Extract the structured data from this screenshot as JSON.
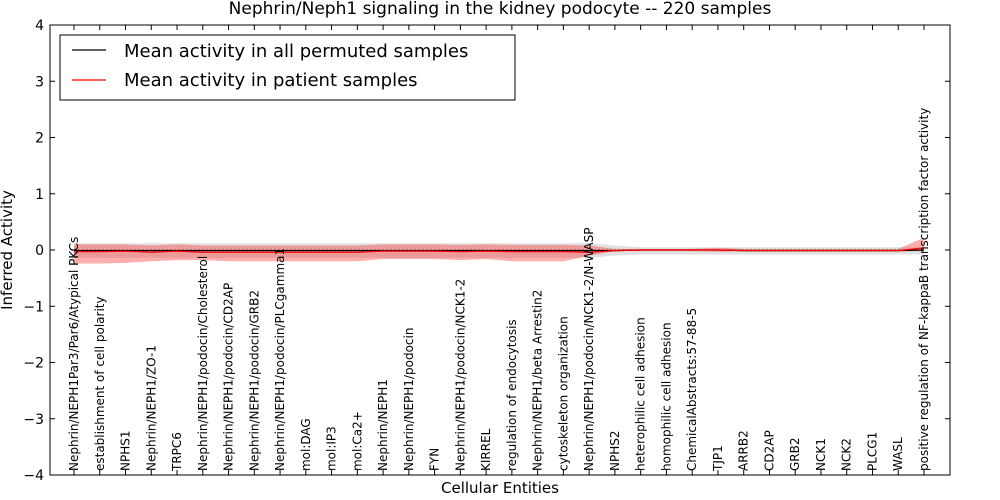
{
  "chart_data": {
    "type": "line",
    "title": "Nephrin/Neph1 signaling in the kidney podocyte -- 220 samples",
    "xlabel": "Cellular Entities",
    "ylabel": "Inferred Activity",
    "ylim": [
      -4,
      4
    ],
    "yticks": [
      -4,
      -3,
      -2,
      -1,
      0,
      1,
      2,
      3,
      4
    ],
    "ytick_labels": [
      "−4",
      "−3",
      "−2",
      "−1",
      "0",
      "1",
      "2",
      "3",
      "4"
    ],
    "grid": false,
    "legend_position": "top-left",
    "categories": [
      "Nephrin/NEPH1Par3/Par6/Atypical PKCs",
      "establishment of cell polarity",
      "NPHS1",
      "Nephrin/NEPH1/ZO-1",
      "TRPC6",
      "Nephrin/NEPH1/podocin/Cholesterol",
      "Nephrin/NEPH1/podocin/CD2AP",
      "Nephrin/NEPH1/podocin/GRB2",
      "Nephrin/NEPH1/podocin/PLCgamma1",
      "mol:DAG",
      "mol:IP3",
      "mol:Ca2+",
      "Nephrin/NEPH1",
      "Nephrin/NEPH1/podocin",
      "FYN",
      "Nephrin/NEPH1/podocin/NCK1-2",
      "KIRREL",
      "regulation of endocytosis",
      "Nephrin/NEPH1/beta Arrestin2",
      "cytoskeleton organization",
      "Nephrin/NEPH1/podocin/NCK1-2/N-WASP",
      "NPHS2",
      "heterophilic cell adhesion",
      "homophilic cell adhesion",
      "ChemicalAbstracts:57-88-5",
      "TJP1",
      "ARRB2",
      "CD2AP",
      "GRB2",
      "NCK1",
      "NCK2",
      "PLCG1",
      "WASL",
      "positive regulation of NF-kappaB transcription factor activity"
    ],
    "series": [
      {
        "name": "Mean activity in all permuted samples",
        "color": "#000000",
        "values": [
          -0.01,
          -0.01,
          -0.01,
          -0.01,
          -0.01,
          -0.01,
          -0.01,
          -0.01,
          -0.01,
          -0.01,
          -0.01,
          -0.01,
          -0.01,
          -0.01,
          -0.01,
          -0.01,
          -0.01,
          -0.01,
          -0.01,
          -0.01,
          -0.01,
          -0.01,
          0.0,
          0.0,
          0.0,
          0.0,
          -0.01,
          -0.01,
          -0.01,
          -0.01,
          -0.01,
          -0.01,
          -0.01,
          0.0
        ],
        "band_upper": [
          0.12,
          0.12,
          0.12,
          0.12,
          0.12,
          0.12,
          0.12,
          0.12,
          0.12,
          0.12,
          0.12,
          0.12,
          0.12,
          0.12,
          0.12,
          0.12,
          0.12,
          0.12,
          0.12,
          0.12,
          0.12,
          0.08,
          0.05,
          0.05,
          0.05,
          0.05,
          0.05,
          0.05,
          0.05,
          0.05,
          0.05,
          0.05,
          0.05,
          0.05
        ],
        "band_lower": [
          -0.14,
          -0.14,
          -0.14,
          -0.14,
          -0.14,
          -0.14,
          -0.14,
          -0.14,
          -0.14,
          -0.14,
          -0.14,
          -0.14,
          -0.14,
          -0.14,
          -0.14,
          -0.14,
          -0.14,
          -0.14,
          -0.14,
          -0.14,
          -0.14,
          -0.1,
          -0.08,
          -0.08,
          -0.08,
          -0.08,
          -0.08,
          -0.08,
          -0.08,
          -0.08,
          -0.08,
          -0.08,
          -0.08,
          -0.08
        ]
      },
      {
        "name": "Mean activity in patient samples",
        "color": "#ff0000",
        "values": [
          -0.03,
          -0.03,
          -0.02,
          -0.04,
          -0.02,
          -0.04,
          -0.04,
          -0.04,
          -0.04,
          -0.04,
          -0.04,
          -0.04,
          -0.02,
          -0.02,
          -0.02,
          -0.03,
          -0.02,
          -0.03,
          -0.03,
          -0.03,
          -0.04,
          -0.01,
          0.0,
          0.0,
          0.0,
          0.0,
          -0.01,
          -0.01,
          -0.01,
          -0.01,
          -0.01,
          -0.01,
          -0.01,
          0.04
        ],
        "band_upper": [
          0.1,
          0.1,
          0.1,
          0.08,
          0.1,
          0.08,
          0.08,
          0.08,
          0.08,
          0.08,
          0.08,
          0.08,
          0.1,
          0.1,
          0.1,
          0.09,
          0.1,
          0.09,
          0.09,
          0.09,
          0.08,
          0.02,
          0.02,
          0.02,
          0.02,
          0.04,
          0.02,
          0.02,
          0.02,
          0.02,
          0.02,
          0.02,
          0.02,
          0.22
        ],
        "band_lower": [
          -0.24,
          -0.24,
          -0.23,
          -0.2,
          -0.18,
          -0.18,
          -0.2,
          -0.2,
          -0.2,
          -0.2,
          -0.2,
          -0.2,
          -0.16,
          -0.16,
          -0.16,
          -0.18,
          -0.16,
          -0.2,
          -0.2,
          -0.2,
          -0.1,
          -0.02,
          -0.02,
          -0.02,
          -0.02,
          -0.03,
          -0.02,
          -0.02,
          -0.02,
          -0.02,
          -0.02,
          -0.02,
          -0.02,
          -0.02
        ]
      }
    ]
  }
}
